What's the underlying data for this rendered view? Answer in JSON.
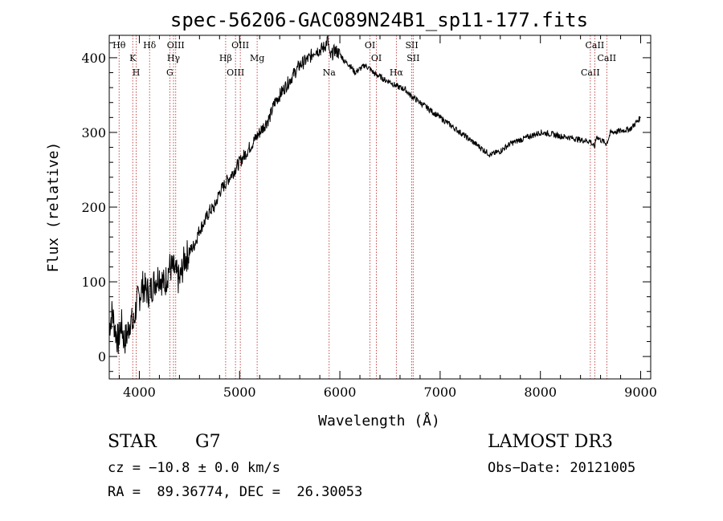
{
  "chart_data": {
    "type": "line",
    "title": "spec-56206-GAC089N24B1_sp11-177.fits",
    "xlabel": "Wavelength (Å)",
    "ylabel": "Flux (relative)",
    "xlim": [
      3700,
      9100
    ],
    "ylim": [
      -30,
      430
    ],
    "xticks": [
      4000,
      5000,
      6000,
      7000,
      8000,
      9000
    ],
    "yticks": [
      0,
      100,
      200,
      300,
      400
    ],
    "xtick_labels": [
      "4000",
      "5000",
      "6000",
      "7000",
      "8000",
      "9000"
    ],
    "ytick_labels": [
      "0",
      "100",
      "200",
      "300",
      "400"
    ],
    "grid": false,
    "series": [
      {
        "name": "spectrum",
        "x": [
          3700,
          3730,
          3760,
          3790,
          3820,
          3850,
          3880,
          3910,
          3940,
          3970,
          4000,
          4030,
          4060,
          4100,
          4150,
          4200,
          4250,
          4300,
          4350,
          4400,
          4450,
          4500,
          4550,
          4600,
          4650,
          4700,
          4750,
          4800,
          4850,
          4900,
          4950,
          5000,
          5050,
          5100,
          5150,
          5200,
          5250,
          5300,
          5350,
          5400,
          5450,
          5500,
          5550,
          5600,
          5650,
          5700,
          5750,
          5800,
          5850,
          5880,
          5900,
          5950,
          6000,
          6050,
          6100,
          6150,
          6200,
          6250,
          6300,
          6350,
          6400,
          6450,
          6500,
          6550,
          6600,
          6650,
          6700,
          6750,
          6800,
          6850,
          6900,
          6950,
          7000,
          7100,
          7200,
          7300,
          7400,
          7500,
          7600,
          7700,
          7800,
          7900,
          8000,
          8100,
          8200,
          8300,
          8400,
          8500,
          8540,
          8560,
          8600,
          8660,
          8700,
          8800,
          8900,
          9000
        ],
        "values": [
          40,
          60,
          35,
          20,
          45,
          20,
          30,
          50,
          40,
          70,
          80,
          95,
          90,
          85,
          100,
          110,
          95,
          120,
          115,
          100,
          130,
          140,
          150,
          170,
          180,
          195,
          200,
          220,
          230,
          240,
          250,
          260,
          270,
          280,
          290,
          300,
          310,
          320,
          340,
          350,
          360,
          370,
          380,
          390,
          395,
          400,
          410,
          410,
          415,
          425,
          400,
          410,
          405,
          395,
          390,
          380,
          385,
          390,
          385,
          378,
          375,
          370,
          368,
          363,
          360,
          358,
          350,
          345,
          340,
          335,
          330,
          325,
          320,
          310,
          300,
          290,
          280,
          270,
          275,
          285,
          290,
          295,
          300,
          298,
          295,
          293,
          290,
          288,
          280,
          295,
          290,
          285,
          300,
          302,
          305,
          320
        ]
      }
    ],
    "lines": [
      {
        "label": "Hθ",
        "x": 3798
      },
      {
        "label": "K",
        "x": 3934
      },
      {
        "label": "H",
        "x": 3969
      },
      {
        "label": "Hδ",
        "x": 4102
      },
      {
        "label": "Hγ",
        "x": 4341
      },
      {
        "label": "G",
        "x": 4304
      },
      {
        "label": "OIII",
        "x": 4363
      },
      {
        "label": "Hβ",
        "x": 4861
      },
      {
        "label": "OIII",
        "x": 4959
      },
      {
        "label": "OIII",
        "x": 5007
      },
      {
        "label": "Mg",
        "x": 5175
      },
      {
        "label": "Na",
        "x": 5893
      },
      {
        "label": "OI",
        "x": 6300
      },
      {
        "label": "OI",
        "x": 6364
      },
      {
        "label": "Hα",
        "x": 6563
      },
      {
        "label": "SII",
        "x": 6717
      },
      {
        "label": "SII",
        "x": 6731
      },
      {
        "label": "CaII",
        "x": 8498
      },
      {
        "label": "CaII",
        "x": 8542
      },
      {
        "label": "CaII",
        "x": 8662
      }
    ]
  },
  "info": {
    "class": "STAR",
    "subclass": "G7",
    "survey": "LAMOST DR3",
    "cz": "cz = −10.8 ± 0.0 km/s",
    "obs_date": "Obs−Date: 20121005",
    "radec": "RA =  89.36774, DEC =  26.30053"
  }
}
